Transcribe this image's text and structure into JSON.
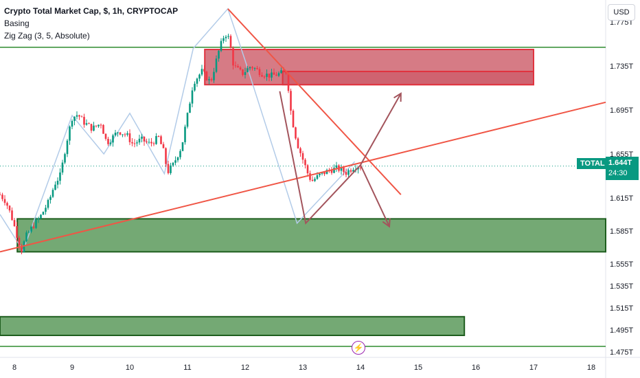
{
  "legend": {
    "title": "Crypto Total Market Cap, $, 1h, CRYPTOCAP",
    "line2": "Basing",
    "line3": "Zig Zag (3, 5, Absolute)"
  },
  "currency_button": "USD",
  "symbol_tag": "TOTAL",
  "last_price": "1.644T",
  "countdown": "24:30",
  "event_icon": "lightning-icon",
  "colors": {
    "up": "#089981",
    "down": "#f23645",
    "zigzag": "#b2cbe8",
    "resistance_fill": "#cc5a66",
    "support_fill": "#5c9a5c",
    "trend": "#f05545",
    "projection": "#a3545c",
    "hline": "#2e8b2e"
  },
  "chart_data": {
    "type": "candlestick",
    "symbol": "TOTAL",
    "timeframe": "1h",
    "x_tick_labels": [
      "8",
      "9",
      "10",
      "11",
      "12",
      "13",
      "14",
      "15",
      "16",
      "17",
      "18"
    ],
    "x_ticks": [
      8,
      9,
      10,
      11,
      12,
      13,
      14,
      15,
      16,
      17,
      18
    ],
    "xlim": [
      7.75,
      18.25
    ],
    "y_tick_labels": [
      "1.775T",
      "1.735T",
      "1.695T",
      "1.655T",
      "1.615T",
      "1.585T",
      "1.555T",
      "1.535T",
      "1.515T",
      "1.495T",
      "1.475T"
    ],
    "y_ticks": [
      1.775,
      1.735,
      1.695,
      1.655,
      1.615,
      1.585,
      1.555,
      1.535,
      1.515,
      1.495,
      1.475
    ],
    "ylim": [
      1.47,
      1.795
    ],
    "last_price": 1.644,
    "price_path": [
      [
        7.75,
        1.618
      ],
      [
        7.85,
        1.612
      ],
      [
        7.95,
        1.598
      ],
      [
        8.05,
        1.58
      ],
      [
        8.12,
        1.567
      ],
      [
        8.2,
        1.58
      ],
      [
        8.3,
        1.588
      ],
      [
        8.45,
        1.598
      ],
      [
        8.6,
        1.612
      ],
      [
        8.7,
        1.628
      ],
      [
        8.8,
        1.636
      ],
      [
        8.9,
        1.665
      ],
      [
        9.0,
        1.688
      ],
      [
        9.1,
        1.691
      ],
      [
        9.2,
        1.684
      ],
      [
        9.35,
        1.678
      ],
      [
        9.5,
        1.683
      ],
      [
        9.6,
        1.665
      ],
      [
        9.7,
        1.67
      ],
      [
        9.8,
        1.676
      ],
      [
        9.95,
        1.672
      ],
      [
        10.05,
        1.664
      ],
      [
        10.2,
        1.668
      ],
      [
        10.35,
        1.664
      ],
      [
        10.5,
        1.67
      ],
      [
        10.6,
        1.655
      ],
      [
        10.65,
        1.638
      ],
      [
        10.75,
        1.645
      ],
      [
        10.9,
        1.662
      ],
      [
        11.0,
        1.69
      ],
      [
        11.1,
        1.72
      ],
      [
        11.25,
        1.73
      ],
      [
        11.4,
        1.72
      ],
      [
        11.55,
        1.75
      ],
      [
        11.65,
        1.765
      ],
      [
        11.72,
        1.76
      ],
      [
        11.8,
        1.735
      ],
      [
        11.95,
        1.728
      ],
      [
        12.1,
        1.735
      ],
      [
        12.3,
        1.728
      ],
      [
        12.45,
        1.726
      ],
      [
        12.6,
        1.728
      ],
      [
        12.72,
        1.73
      ],
      [
        12.8,
        1.69
      ],
      [
        12.9,
        1.665
      ],
      [
        13.0,
        1.65
      ],
      [
        13.08,
        1.638
      ],
      [
        13.15,
        1.63
      ],
      [
        13.3,
        1.636
      ],
      [
        13.45,
        1.64
      ],
      [
        13.6,
        1.642
      ],
      [
        13.75,
        1.638
      ],
      [
        13.9,
        1.644
      ],
      [
        14.0,
        1.644
      ]
    ],
    "zigzag": [
      [
        7.75,
        1.6
      ],
      [
        8.15,
        1.567
      ],
      [
        9.0,
        1.69
      ],
      [
        9.55,
        1.655
      ],
      [
        10.0,
        1.692
      ],
      [
        10.6,
        1.637
      ],
      [
        11.1,
        1.751
      ],
      [
        11.7,
        1.787
      ],
      [
        12.0,
        1.74
      ],
      [
        12.9,
        1.592
      ],
      [
        13.9,
        1.648
      ]
    ],
    "resistance_zone_outer": {
      "x": [
        11.3,
        17.0
      ],
      "y": [
        1.718,
        1.75
      ]
    },
    "resistance_zone_inner": {
      "x": [
        12.65,
        17.0
      ],
      "y": [
        1.718,
        1.73
      ]
    },
    "support_zone_1": {
      "x": [
        8.05,
        18.25
      ],
      "y": [
        1.566,
        1.596
      ]
    },
    "support_zone_2": {
      "x": [
        7.75,
        15.8
      ],
      "y": [
        1.49,
        1.507
      ]
    },
    "horizontal_levels": [
      1.752,
      1.48
    ],
    "trendline_up": [
      [
        7.75,
        1.566
      ],
      [
        18.25,
        1.702
      ]
    ],
    "trendline_down": [
      [
        11.7,
        1.787
      ],
      [
        14.7,
        1.618
      ]
    ],
    "projection_path": [
      [
        12.6,
        1.712
      ],
      [
        13.05,
        1.592
      ],
      [
        14.0,
        1.645
      ],
      [
        14.7,
        1.71
      ]
    ],
    "projection_down": [
      [
        14.0,
        1.645
      ],
      [
        14.5,
        1.589
      ]
    ]
  }
}
